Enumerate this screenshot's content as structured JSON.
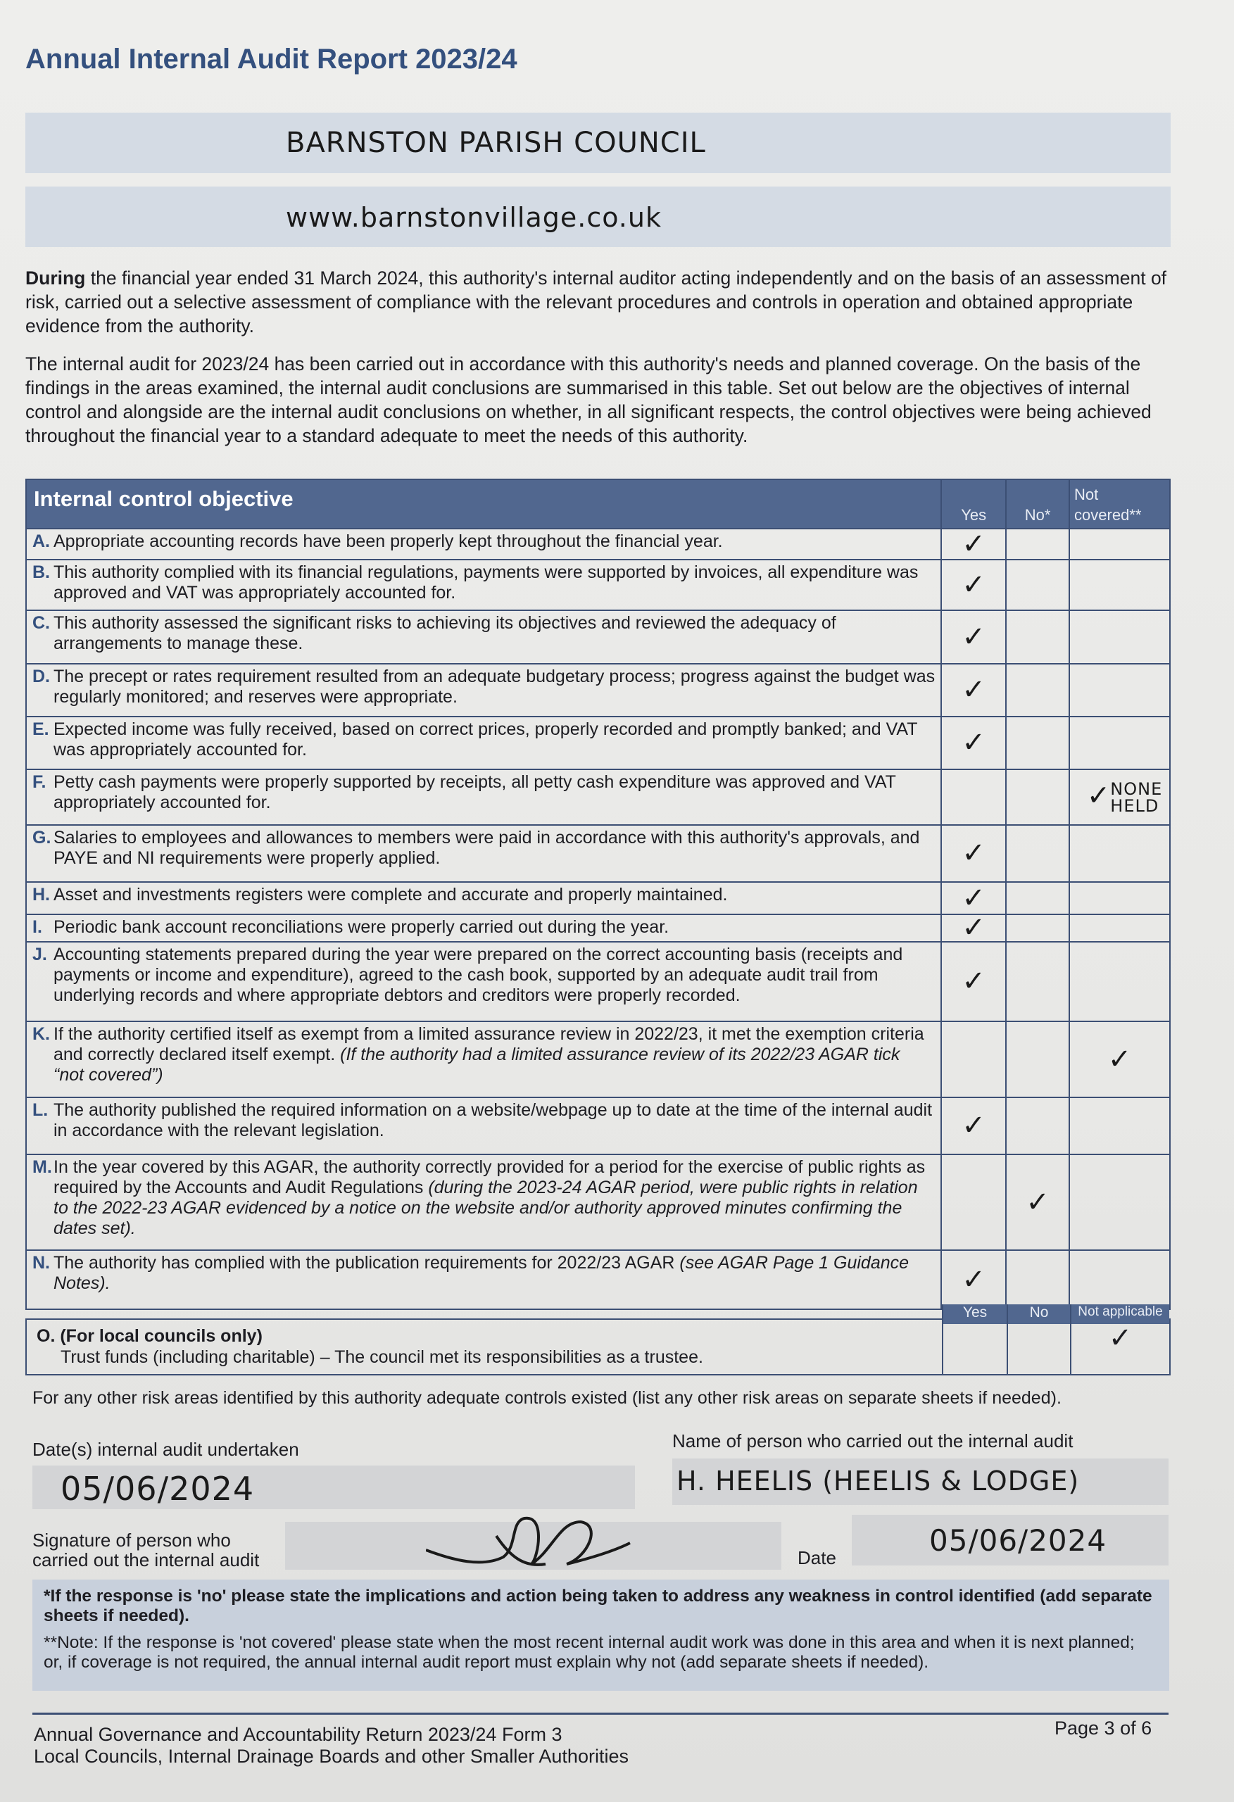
{
  "title": "Annual Internal Audit Report 2023/24",
  "authority_name": "BARNSTON PARISH COUNCIL",
  "website": "www.barnstonvillage.co.uk",
  "intro_bold": "During",
  "intro_rest": " the financial year ended 31 March 2024, this authority's internal auditor acting independently and on the basis of an assessment of risk, carried out a selective assessment of compliance with the relevant procedures and controls in operation and obtained appropriate evidence from the authority.",
  "intro2": "The internal audit for 2023/24 has been carried out in accordance with this authority's needs and planned coverage. On the basis of the findings in the areas examined, the internal audit conclusions are summarised in this table. Set out below are the objectives of internal control and alongside are the internal audit conclusions on whether, in all significant respects, the control objectives were being achieved throughout the financial year to a standard adequate to meet the needs of this authority.",
  "table": {
    "header": {
      "objective": "Internal control objective",
      "yes": "Yes",
      "no": "No*",
      "not_covered": "Not covered**"
    },
    "rows": [
      {
        "letter": "A.",
        "text": "Appropriate accounting records have been properly kept throughout the financial year.",
        "italic": "",
        "answer": "yes"
      },
      {
        "letter": "B.",
        "text": "This authority complied with its financial regulations, payments were supported by invoices, all expenditure was approved and VAT was appropriately accounted for.",
        "italic": "",
        "answer": "yes"
      },
      {
        "letter": "C.",
        "text": "This authority assessed the significant risks to achieving its objectives and reviewed the adequacy of arrangements to manage these.",
        "italic": "",
        "answer": "yes"
      },
      {
        "letter": "D.",
        "text": "The precept or rates requirement resulted from an adequate budgetary process; progress against the budget was regularly monitored; and reserves were appropriate.",
        "italic": "",
        "answer": "yes"
      },
      {
        "letter": "E.",
        "text": "Expected income was fully received, based on correct prices, properly recorded and promptly banked; and VAT was appropriately accounted for.",
        "italic": "",
        "answer": "yes"
      },
      {
        "letter": "F.",
        "text": "Petty cash payments were properly supported by receipts, all petty cash expenditure was approved and VAT appropriately accounted for.",
        "italic": "",
        "answer": "not_covered",
        "note": "NONE HELD"
      },
      {
        "letter": "G.",
        "text": "Salaries to employees and allowances to members were paid in accordance with this authority's approvals, and PAYE and NI requirements were properly applied.",
        "italic": "",
        "answer": "yes"
      },
      {
        "letter": "H.",
        "text": "Asset and investments registers were complete and accurate and properly maintained.",
        "italic": "",
        "answer": "yes"
      },
      {
        "letter": "I.",
        "text": "Periodic bank account reconciliations were properly carried out during the year.",
        "italic": "",
        "answer": "yes"
      },
      {
        "letter": "J.",
        "text": "Accounting statements prepared during the year were prepared on the correct accounting basis (receipts and payments or income and expenditure), agreed to the cash book, supported by an adequate audit trail from underlying records and where appropriate debtors and creditors were properly recorded.",
        "italic": "",
        "answer": "yes"
      },
      {
        "letter": "K.",
        "text": "If the authority certified itself as exempt from a limited assurance review in 2022/23, it met the exemption criteria and correctly declared itself exempt. ",
        "italic": "(If the authority had a limited assurance review of its 2022/23 AGAR tick “not covered”)",
        "answer": "not_covered"
      },
      {
        "letter": "L.",
        "text": "The authority published the required information on a website/webpage up to date at the time of the internal audit in accordance with the relevant legislation.",
        "italic": "",
        "answer": "yes"
      },
      {
        "letter": "M.",
        "text": "In the year covered by this AGAR, the authority correctly provided for a period for the exercise of public rights as required by the Accounts and Audit Regulations ",
        "italic": "(during the 2023-24 AGAR period, were public rights in relation to the 2022-23 AGAR evidenced by a notice on the website and/or authority approved minutes confirming the dates set).",
        "answer": "no"
      },
      {
        "letter": "N.",
        "text": "The authority has complied with the publication requirements for 2022/23 AGAR ",
        "italic": "(see AGAR Page 1 Guidance Notes).",
        "answer": "yes"
      }
    ]
  },
  "row_o": {
    "letter": "O.",
    "heading": "(For local councils only)",
    "text": "Trust funds (including charitable) – The council met its responsibilities as a trustee.",
    "yes": "Yes",
    "no": "No",
    "na": "Not applicable",
    "answer": "na"
  },
  "other_risks": "For any other risk areas identified by this authority adequate controls existed (list any other risk areas on separate sheets if needed).",
  "dates_label": "Date(s) internal audit undertaken",
  "dates_value": "05/06/2024",
  "name_label": "Name of person who carried out the internal audit",
  "name_value": "H. HEELIS (HEELIS & LODGE)",
  "signature_label_1": "Signature of person who",
  "signature_label_2": "carried out the internal audit",
  "date_label": "Date",
  "date_value": "05/06/2024",
  "check_mark": "✓",
  "note_no": "*If the response is 'no' please state the implications and action being taken to address any weakness in control identified (add separate sheets if needed).",
  "note_not_covered": "**Note: If the response is 'not covered' please state when the most recent internal audit work was done in this area and when it is next planned; or, if coverage is not required, the annual internal audit report must explain why not (add separate sheets if needed).",
  "footer": {
    "line1": "Annual Governance and Accountability Return 2023/24 Form 3",
    "line2": "Local Councils, Internal Drainage Boards and other Smaller Authorities",
    "page": "Page 3 of 6"
  },
  "colors": {
    "brand": "#34507e",
    "table_header": "#51678f",
    "band": "#d4dbe4"
  }
}
